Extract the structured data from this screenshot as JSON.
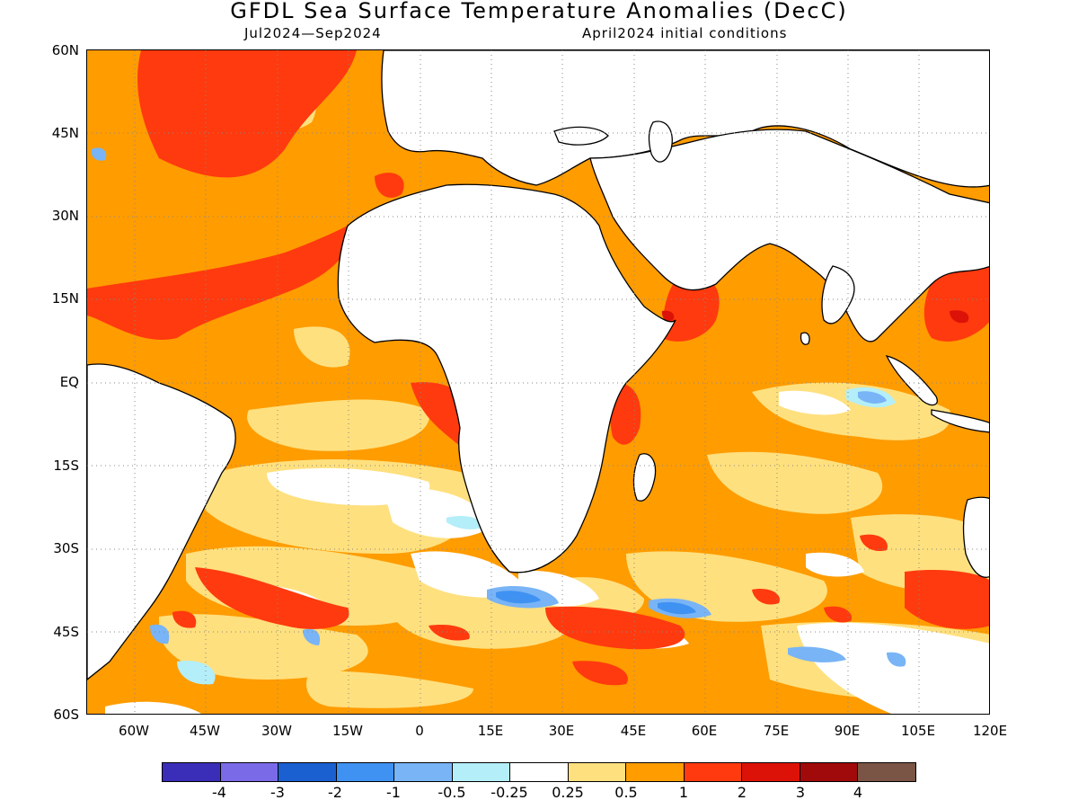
{
  "header": {
    "title": "GFDL Sea Surface Temperature Anomalies (DecC)",
    "period": "Jul2024—Sep2024",
    "init": "April2024 initial conditions"
  },
  "map": {
    "lat_labels": [
      "60N",
      "45N",
      "30N",
      "15N",
      "EQ",
      "15S",
      "30S",
      "45S",
      "60S"
    ],
    "lon_labels": [
      "60W",
      "45W",
      "30W",
      "15W",
      "0",
      "15E",
      "30E",
      "45E",
      "60E",
      "75E",
      "90E",
      "105E",
      "120E"
    ],
    "lon_range": [
      -70,
      120
    ],
    "lat_range": [
      -60,
      60
    ],
    "grid": "dotted"
  },
  "legend": {
    "colors": [
      "#3a2db8",
      "#7a6ae8",
      "#1a60d0",
      "#3f92f2",
      "#78b4f6",
      "#b4eef8",
      "#ffffff",
      "#ffe07e",
      "#ff9c00",
      "#ff3a0e",
      "#dc1208",
      "#a00a0a",
      "#7a5444"
    ],
    "labels": [
      "-4",
      "-3",
      "-2",
      "-1",
      "-0.5",
      "-0.25",
      "0.25",
      "0.5",
      "1",
      "2",
      "3",
      "4"
    ]
  }
}
